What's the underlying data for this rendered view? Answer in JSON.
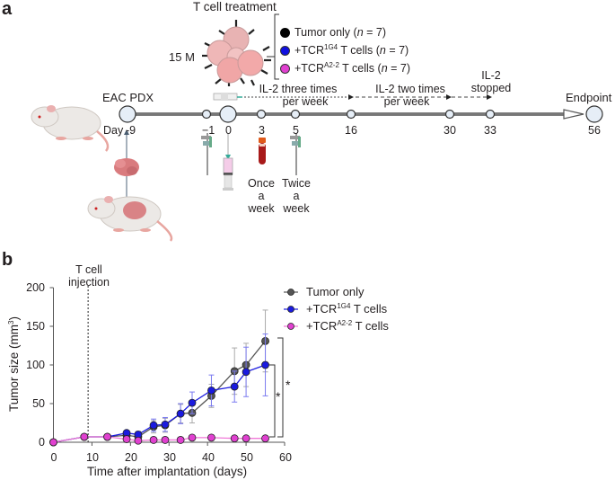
{
  "panel_a": {
    "label": "a",
    "treatment_title": "T cell treatment",
    "cell_count": "15 M",
    "groups": [
      {
        "marker_color": "#000000",
        "text": "Tumor only (",
        "n_label": "n",
        "n_value": " = 7)"
      },
      {
        "marker_color": "#1010e0",
        "prefix": "+TCR",
        "sup": "1G4",
        "suffix": " T cells (",
        "n_label": "n",
        "n_value": " = 7)"
      },
      {
        "marker_color": "#e040d0",
        "prefix": "+TCR",
        "sup": "A2-2",
        "suffix": " T cells (",
        "n_label": "n",
        "n_value": " = 7)"
      }
    ],
    "model_label": "EAC PDX",
    "day_prefix": "Day",
    "timeline_days": [
      "-9",
      "−1",
      "0",
      "3",
      "5",
      "16",
      "30",
      "33",
      "56"
    ],
    "il2_phase1": [
      "IL-2 three times",
      "per week"
    ],
    "il2_phase2": [
      "IL-2 two times",
      "per week"
    ],
    "il2_stopped": [
      "IL-2",
      "stopped"
    ],
    "endpoint": "Endpoint",
    "blood_freq": [
      "Once",
      "a",
      "week"
    ],
    "measure_freq": [
      "Twice",
      "a",
      "week"
    ]
  },
  "panel_b": {
    "label": "b",
    "annotation": [
      "T cell",
      "injection"
    ],
    "ylabel": "Tumor size (mm",
    "ylabel_sup": "3",
    "ylabel_end": ")",
    "xlabel": "Time after implantation (days)",
    "x_ticks": [
      "0",
      "10",
      "20",
      "30",
      "40",
      "50",
      "60"
    ],
    "y_ticks": [
      "0",
      "50",
      "100",
      "150",
      "200"
    ],
    "legend": [
      {
        "text": "Tumor only",
        "color": "#555555"
      },
      {
        "prefix": "+TCR",
        "sup": "1G4",
        "suffix": " T cells",
        "color": "#1a1adf"
      },
      {
        "prefix": "+TCR",
        "sup": "A2-2",
        "suffix": " T cells",
        "color": "#f07ad8"
      }
    ],
    "significance": [
      "*",
      "*"
    ]
  },
  "chart_data": {
    "type": "line",
    "title": "",
    "xlabel": "Time after implantation (days)",
    "ylabel": "Tumor size (mm3)",
    "xlim": [
      0,
      60
    ],
    "ylim": [
      0,
      200
    ],
    "grid": false,
    "legend_position": "upper right",
    "annotations": [
      {
        "type": "vline",
        "x": 9,
        "style": "dashed",
        "text": "T cell injection"
      },
      {
        "type": "significance",
        "between": [
          "+TCR1G4 T cells",
          "+TCRA2-2 T cells"
        ],
        "text": "*"
      },
      {
        "type": "significance",
        "between": [
          "Tumor only",
          "+TCRA2-2 T cells"
        ],
        "text": "*"
      }
    ],
    "x": [
      0,
      8,
      14,
      19,
      22,
      26,
      29,
      33,
      36,
      41,
      47,
      50,
      55
    ],
    "series": [
      {
        "name": "Tumor only",
        "color": "#555555",
        "values": [
          0,
          7,
          7,
          9,
          7,
          20,
          22,
          37,
          38,
          60,
          92,
          100,
          131
        ],
        "error": [
          0,
          1,
          1,
          3,
          4,
          8,
          9,
          12,
          13,
          15,
          30,
          28,
          40
        ]
      },
      {
        "name": "+TCR1G4 T cells",
        "color": "#1a1adf",
        "values": [
          0,
          7,
          7,
          12,
          10,
          22,
          23,
          37,
          51,
          67,
          72,
          91,
          100
        ],
        "error": [
          0,
          1,
          1,
          3,
          4,
          8,
          9,
          13,
          14,
          20,
          20,
          32,
          40
        ]
      },
      {
        "name": "+TCRA2-2 T cells",
        "color": "#f07ad8",
        "values": [
          0,
          7,
          7,
          4,
          2,
          3,
          3,
          3,
          6,
          6,
          5,
          5,
          5
        ],
        "error": [
          0,
          1,
          1,
          1,
          1,
          1,
          1,
          1,
          3,
          3,
          3,
          3,
          3
        ]
      }
    ]
  }
}
